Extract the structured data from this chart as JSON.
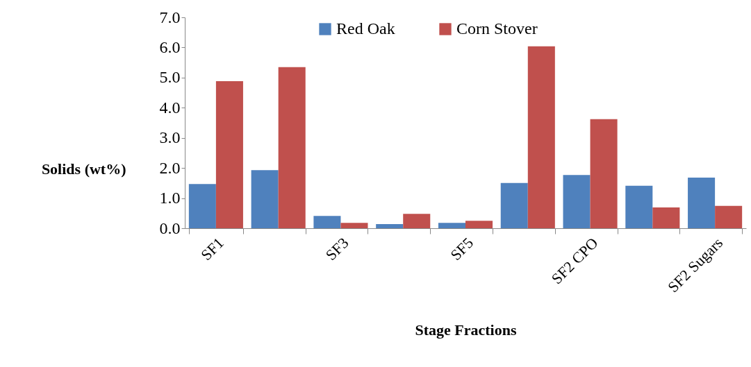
{
  "chart_data": {
    "type": "bar",
    "xlabel": "Stage Fractions",
    "ylabel": "Solids (wt%)",
    "categories": [
      "SF1",
      null,
      "SF3",
      null,
      "SF5",
      null,
      "SF2 CPO",
      null,
      "SF2 Sugars"
    ],
    "series": [
      {
        "name": "Red Oak",
        "color": "#4f81bd",
        "values": [
          1.47,
          1.93,
          0.41,
          0.14,
          0.18,
          1.5,
          1.77,
          1.41,
          1.68
        ]
      },
      {
        "name": "Corn Stover",
        "color": "#c0504d",
        "values": [
          4.88,
          5.35,
          0.18,
          0.48,
          0.25,
          6.04,
          3.62,
          0.69,
          0.74
        ]
      }
    ],
    "ylim": [
      0,
      7
    ],
    "yticks": [
      {
        "value": 0,
        "label": "0.0"
      },
      {
        "value": 1,
        "label": "1.0"
      },
      {
        "value": 2,
        "label": "2.0"
      },
      {
        "value": 3,
        "label": "3.0"
      },
      {
        "value": 4,
        "label": "4.0"
      },
      {
        "value": 5,
        "label": "5.0"
      },
      {
        "value": 6,
        "label": "6.0"
      },
      {
        "value": 7,
        "label": "7.0"
      }
    ],
    "grid": false,
    "legend": "top"
  }
}
